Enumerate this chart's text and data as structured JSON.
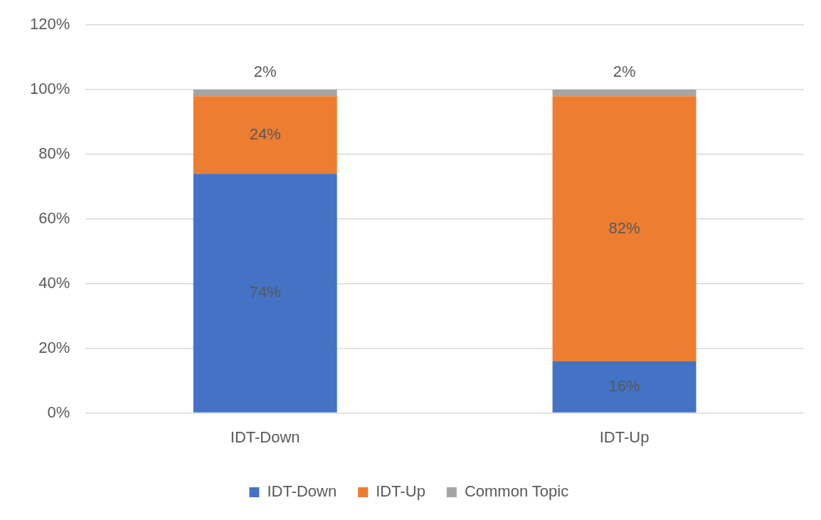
{
  "chart_data": {
    "type": "bar",
    "stacked": true,
    "categories": [
      "IDT-Down",
      "IDT-Up"
    ],
    "series": [
      {
        "name": "IDT-Down",
        "color": "#4472c4",
        "values": [
          74,
          16
        ],
        "value_labels": [
          "74%",
          "16%"
        ]
      },
      {
        "name": "IDT-Up",
        "color": "#ed7d31",
        "values": [
          24,
          82
        ],
        "value_labels": [
          "24%",
          "82%"
        ]
      },
      {
        "name": "Common Topic",
        "color": "#a5a5a5",
        "values": [
          2,
          2
        ],
        "value_labels": [
          "2%",
          "2%"
        ]
      }
    ],
    "ylim": [
      0,
      120
    ],
    "yticks": [
      {
        "value": 0,
        "label": "0%"
      },
      {
        "value": 20,
        "label": "20%"
      },
      {
        "value": 40,
        "label": "40%"
      },
      {
        "value": 60,
        "label": "60%"
      },
      {
        "value": 80,
        "label": "80%"
      },
      {
        "value": 100,
        "label": "100%"
      },
      {
        "value": 120,
        "label": "120%"
      }
    ],
    "grid": "y",
    "legend": "bottom"
  }
}
